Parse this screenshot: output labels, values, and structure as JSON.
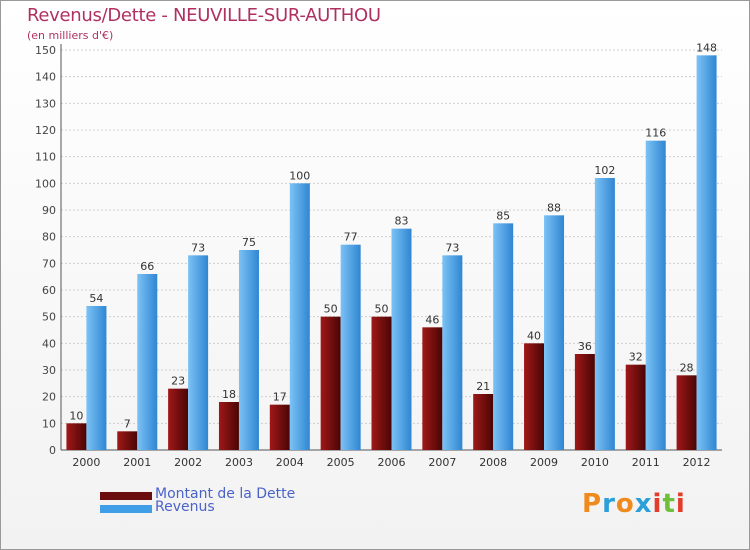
{
  "header": {
    "title": "Revenus/Dette - NEUVILLE-SUR-AUTHOU",
    "subtitle": "(en milliers d'€)"
  },
  "legend": [
    {
      "label": "Montant de la Dette",
      "color": "#6b0d0d"
    },
    {
      "label": "Revenus",
      "color": "#3f9ee6"
    }
  ],
  "logo": {
    "letters": [
      "P",
      "r",
      "o",
      "x",
      "i",
      "t",
      "i"
    ],
    "colors": [
      "#f08a1c",
      "#2a9fd8",
      "#f08a1c",
      "#2a9fd8",
      "#e23c2a",
      "#6fbf3a",
      "#e23c2a"
    ]
  },
  "chart_data": {
    "type": "bar",
    "categories": [
      "2000",
      "2001",
      "2002",
      "2003",
      "2004",
      "2005",
      "2006",
      "2007",
      "2008",
      "2009",
      "2010",
      "2011",
      "2012"
    ],
    "series": [
      {
        "name": "Montant de la Dette",
        "values": [
          10,
          7,
          23,
          18,
          17,
          50,
          50,
          46,
          21,
          40,
          36,
          32,
          28
        ],
        "color": "#6b0d0d"
      },
      {
        "name": "Revenus",
        "values": [
          54,
          66,
          73,
          75,
          100,
          77,
          83,
          73,
          85,
          88,
          102,
          116,
          148
        ],
        "color": "#3f9ee6"
      }
    ],
    "yticks": [
      0,
      10,
      20,
      30,
      40,
      50,
      60,
      70,
      80,
      90,
      100,
      110,
      120,
      130,
      140,
      150
    ],
    "ylim": [
      0,
      150
    ],
    "grid": true
  }
}
